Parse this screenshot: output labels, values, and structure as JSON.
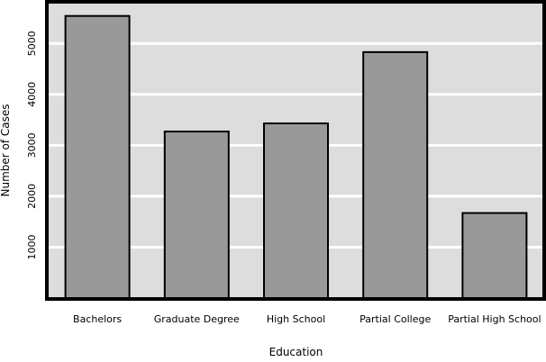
{
  "chart_data": {
    "type": "bar",
    "xlabel": "Education",
    "ylabel": "Number of Cases",
    "categories": [
      "Bachelors",
      "Graduate Degree",
      "High School",
      "Partial College",
      "Partial High School"
    ],
    "values": [
      5540,
      3270,
      3430,
      4830,
      1670
    ],
    "ylim": [
      0,
      5800
    ],
    "yticks": [
      "1000",
      "2000",
      "3000",
      "4000",
      "5000"
    ],
    "grid": true,
    "legend": "none",
    "colors": {
      "background": "#dddddd",
      "bar_fill": "#999999",
      "bar_stroke": "#000000",
      "grid": "#ffffff",
      "frame": "#000000"
    }
  }
}
